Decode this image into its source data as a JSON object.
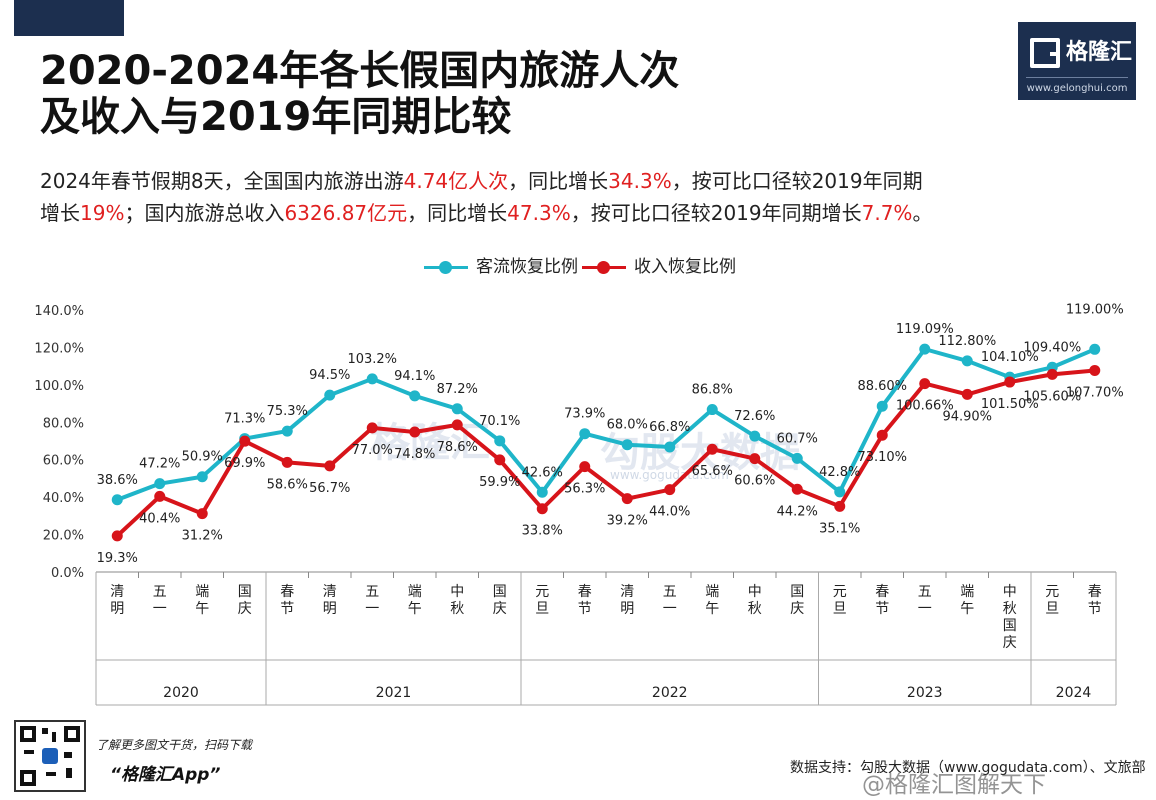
{
  "title_line1": "2020-2024年各长假国内旅游人次",
  "title_line2": "及收入与2019年同期比较",
  "logo": {
    "name": "格隆汇",
    "url": "www.gelonghui.com"
  },
  "description": {
    "line1_parts": [
      "2024年春节假期8天，全国国内旅游出游",
      "4.74亿人次",
      "，同比增长",
      "34.3%",
      "，按可比口径较2019年同期"
    ],
    "line2_parts": [
      "增长",
      "19%",
      "；国内旅游总收入",
      "6326.87亿元",
      "，同比增长",
      "47.3%",
      "，按可比口径较2019年同期增长",
      "7.7%",
      "。"
    ]
  },
  "watermarks": {
    "left": "格隆汇",
    "right": "勾股大数据",
    "url": "www.gogudata.com"
  },
  "footer": {
    "qr_caption": "了解更多图文干货，扫码下载",
    "app_name": "“格隆汇App”",
    "source": "数据支持：勾股大数据（www.gogudata.com）、文旅部",
    "weibo": "@格隆汇图解天下"
  },
  "colors": {
    "visitors": "#1fb5c9",
    "revenue": "#d7141a",
    "header_navy": "#1c2f4f",
    "highlight": "#e02020"
  },
  "chart_data": {
    "type": "line",
    "categories": [
      "清明",
      "五一",
      "端午",
      "国庆",
      "春节",
      "清明",
      "五一",
      "端午",
      "中秋",
      "国庆",
      "元旦",
      "春节",
      "清明",
      "五一",
      "端午",
      "中秋",
      "国庆",
      "元旦",
      "春节",
      "五一",
      "端午",
      "中秋国庆",
      "元旦",
      "春节"
    ],
    "years": [
      {
        "label": "2020",
        "start": 0,
        "end": 3
      },
      {
        "label": "2021",
        "start": 4,
        "end": 9
      },
      {
        "label": "2022",
        "start": 10,
        "end": 16
      },
      {
        "label": "2023",
        "start": 17,
        "end": 21
      },
      {
        "label": "2024",
        "start": 22,
        "end": 23
      }
    ],
    "series": [
      {
        "name": "客流恢复比例",
        "color": "#1fb5c9",
        "values": [
          38.6,
          47.2,
          50.9,
          71.3,
          75.3,
          94.5,
          103.2,
          94.1,
          87.2,
          70.1,
          42.6,
          73.9,
          68.0,
          66.8,
          86.8,
          72.6,
          60.7,
          42.8,
          88.6,
          119.09,
          112.8,
          104.1,
          109.4,
          119.0
        ],
        "labels": [
          "38.6%",
          "47.2%",
          "50.9%",
          "71.3%",
          "75.3%",
          "94.5%",
          "103.2%",
          "94.1%",
          "87.2%",
          "70.1%",
          "42.6%",
          "73.9%",
          "68.0%",
          "66.8%",
          "86.8%",
          "72.6%",
          "60.7%",
          "42.8%",
          "88.60%",
          "119.09%",
          "112.80%",
          "104.10%",
          "109.40%",
          "119.00%"
        ]
      },
      {
        "name": "收入恢复比例",
        "color": "#d7141a",
        "values": [
          19.3,
          40.4,
          31.2,
          69.9,
          58.6,
          56.7,
          77.0,
          74.8,
          78.6,
          59.9,
          33.8,
          56.3,
          39.2,
          44.0,
          65.6,
          60.6,
          44.2,
          35.1,
          73.1,
          100.66,
          94.9,
          101.5,
          105.6,
          107.7
        ],
        "labels": [
          "19.3%",
          "40.4%",
          "31.2%",
          "69.9%",
          "58.6%",
          "56.7%",
          "77.0%",
          "74.8%",
          "78.6%",
          "59.9%",
          "33.8%",
          "56.3%",
          "39.2%",
          "44.0%",
          "65.6%",
          "60.6%",
          "44.2%",
          "35.1%",
          "73.10%",
          "100.66%",
          "94.90%",
          "101.50%",
          "105.60%",
          "107.70%"
        ]
      }
    ],
    "ylim": [
      0,
      140
    ],
    "yticks": [
      "0.0%",
      "20.0%",
      "40.0%",
      "60.0%",
      "80.0%",
      "100.0%",
      "120.0%",
      "140.0%"
    ],
    "legend_position": "top-center"
  }
}
